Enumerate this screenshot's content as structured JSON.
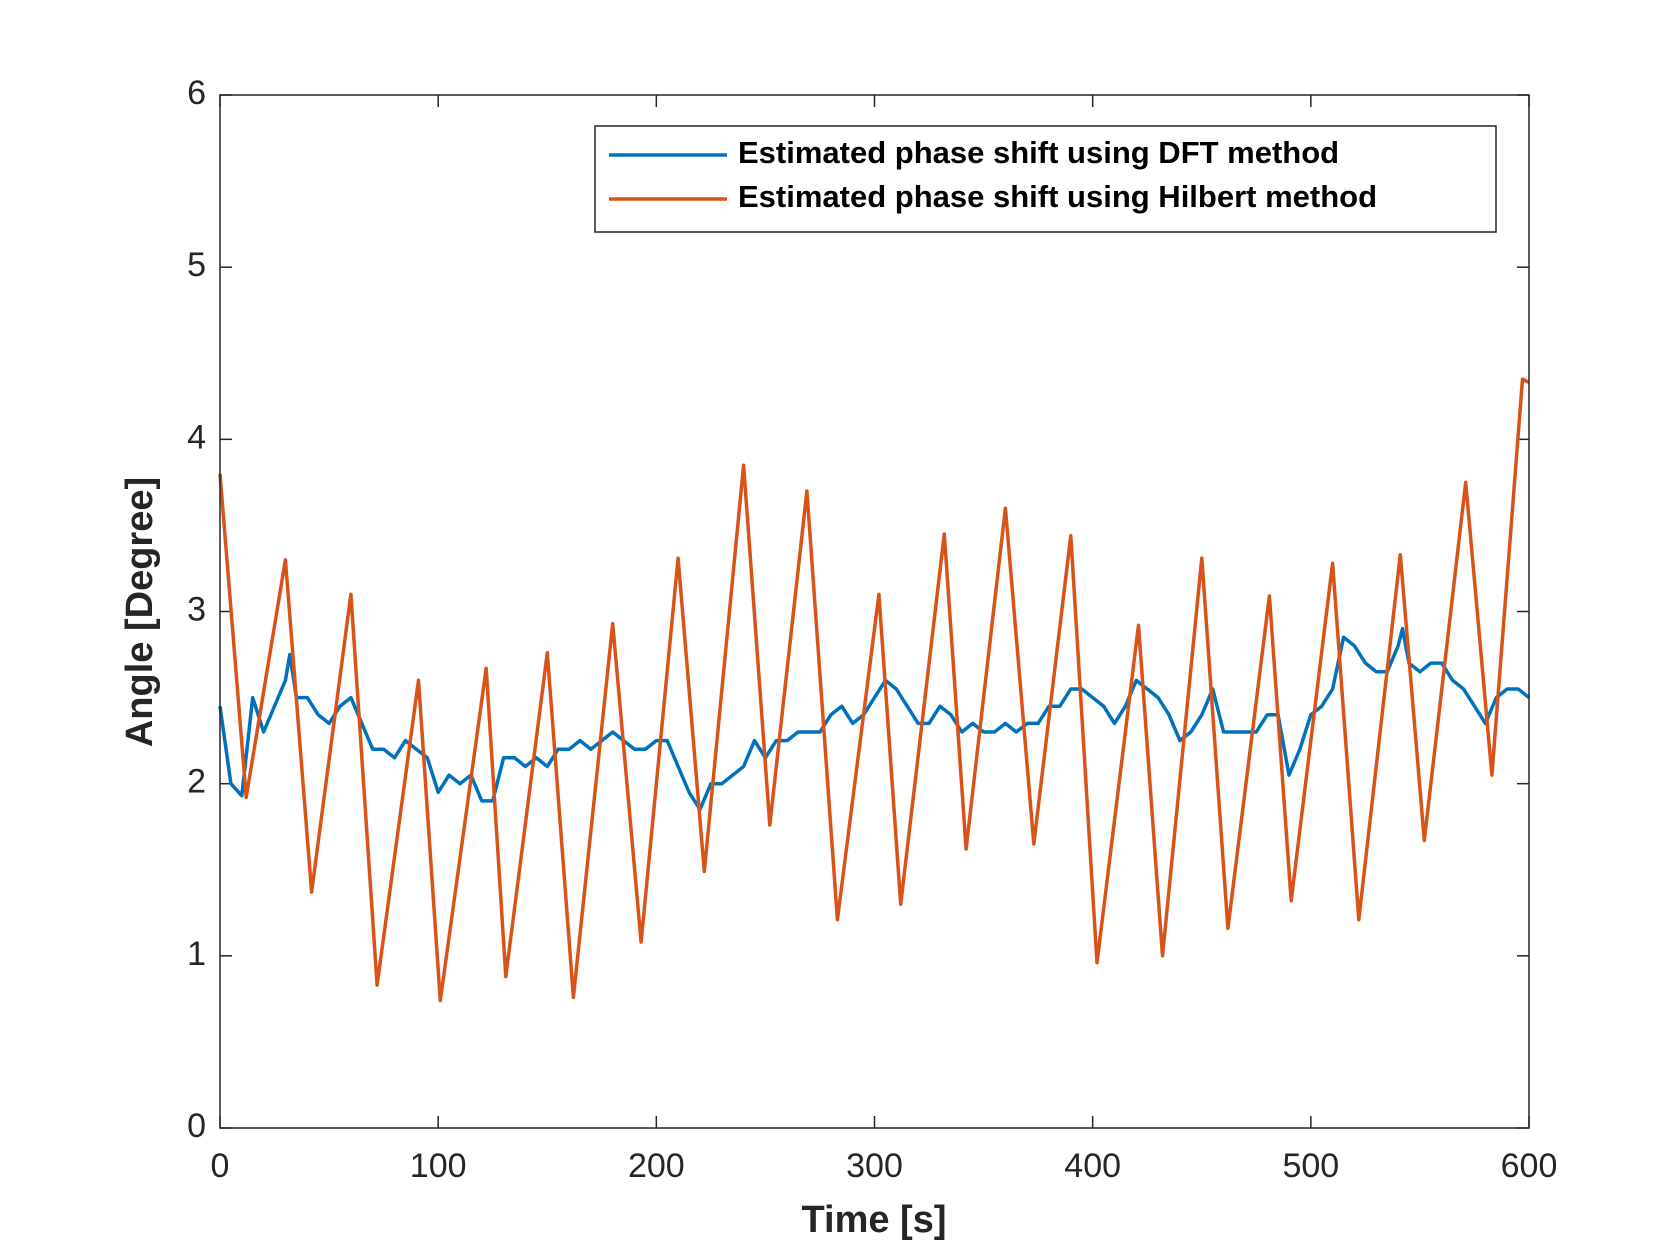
{
  "chart_data": {
    "type": "line",
    "xlabel": "Time [s]",
    "ylabel": "Angle [Degree]",
    "xlim": [
      0,
      600
    ],
    "ylim": [
      0,
      6
    ],
    "xticks": [
      0,
      100,
      200,
      300,
      400,
      500,
      600
    ],
    "yticks": [
      0,
      1,
      2,
      3,
      4,
      5,
      6
    ],
    "legend": "upper right",
    "series": [
      {
        "name": "Estimated phase shift using DFT method",
        "color": "#0072bd",
        "x": [
          0,
          5,
          10,
          15,
          20,
          25,
          30,
          32,
          35,
          40,
          45,
          50,
          55,
          60,
          65,
          70,
          75,
          80,
          85,
          90,
          95,
          100,
          105,
          110,
          115,
          120,
          125,
          130,
          135,
          140,
          145,
          150,
          155,
          160,
          165,
          170,
          175,
          180,
          185,
          190,
          195,
          200,
          205,
          210,
          215,
          220,
          225,
          230,
          235,
          240,
          245,
          250,
          255,
          260,
          265,
          270,
          275,
          280,
          285,
          290,
          295,
          300,
          305,
          310,
          315,
          320,
          325,
          330,
          335,
          340,
          345,
          350,
          355,
          360,
          365,
          370,
          375,
          380,
          385,
          390,
          395,
          400,
          405,
          410,
          415,
          420,
          425,
          430,
          435,
          440,
          445,
          450,
          455,
          460,
          465,
          470,
          475,
          480,
          485,
          490,
          495,
          500,
          505,
          510,
          515,
          520,
          525,
          530,
          535,
          540,
          542,
          545,
          550,
          555,
          560,
          565,
          570,
          575,
          580,
          585,
          590,
          595,
          600
        ],
        "values": [
          2.45,
          2.0,
          1.93,
          2.5,
          2.3,
          2.45,
          2.6,
          2.75,
          2.5,
          2.5,
          2.4,
          2.35,
          2.45,
          2.5,
          2.35,
          2.2,
          2.2,
          2.15,
          2.25,
          2.2,
          2.15,
          1.95,
          2.05,
          2.0,
          2.05,
          1.9,
          1.9,
          2.15,
          2.15,
          2.1,
          2.15,
          2.1,
          2.2,
          2.2,
          2.25,
          2.2,
          2.25,
          2.3,
          2.25,
          2.2,
          2.2,
          2.25,
          2.25,
          2.1,
          1.95,
          1.85,
          2.0,
          2.0,
          2.05,
          2.1,
          2.25,
          2.15,
          2.25,
          2.25,
          2.3,
          2.3,
          2.3,
          2.4,
          2.45,
          2.35,
          2.4,
          2.5,
          2.6,
          2.55,
          2.45,
          2.35,
          2.35,
          2.45,
          2.4,
          2.3,
          2.35,
          2.3,
          2.3,
          2.35,
          2.3,
          2.35,
          2.35,
          2.45,
          2.45,
          2.55,
          2.55,
          2.5,
          2.45,
          2.35,
          2.45,
          2.6,
          2.55,
          2.5,
          2.4,
          2.25,
          2.3,
          2.4,
          2.55,
          2.3,
          2.3,
          2.3,
          2.3,
          2.4,
          2.4,
          2.05,
          2.2,
          2.4,
          2.45,
          2.55,
          2.85,
          2.8,
          2.7,
          2.65,
          2.65,
          2.8,
          2.9,
          2.7,
          2.65,
          2.7,
          2.7,
          2.6,
          2.55,
          2.45,
          2.35,
          2.5,
          2.55,
          2.55,
          2.5
        ]
      },
      {
        "name": "Estimated phase shift using Hilbert method",
        "color": "#d95319",
        "x": [
          0,
          12,
          30,
          42,
          60,
          72,
          91,
          101,
          122,
          131,
          150,
          162,
          180,
          193,
          210,
          222,
          240,
          252,
          269,
          283,
          302,
          312,
          332,
          342,
          360,
          373,
          390,
          402,
          421,
          432,
          450,
          462,
          481,
          491,
          510,
          522,
          541,
          552,
          571,
          583,
          597,
          600
        ],
        "values": [
          3.8,
          1.92,
          3.3,
          1.37,
          3.1,
          0.83,
          2.6,
          0.74,
          2.67,
          0.88,
          2.76,
          0.76,
          2.93,
          1.08,
          3.31,
          1.49,
          3.85,
          1.76,
          3.7,
          1.21,
          3.1,
          1.3,
          3.45,
          1.62,
          3.6,
          1.65,
          3.44,
          0.96,
          2.92,
          1.0,
          3.31,
          1.16,
          3.09,
          1.32,
          3.28,
          1.21,
          3.33,
          1.67,
          3.75,
          2.05,
          4.35,
          4.33
        ]
      }
    ]
  }
}
